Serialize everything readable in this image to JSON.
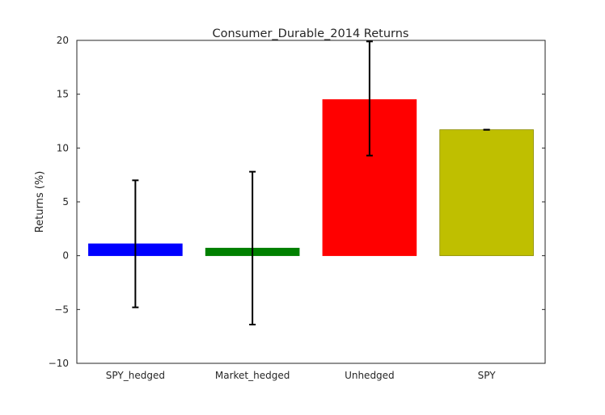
{
  "chart_data": {
    "type": "bar",
    "title": "Consumer_Durable_2014 Returns",
    "xlabel": "",
    "ylabel": "Returns (%)",
    "ylim": [
      -10,
      20
    ],
    "yticks": [
      -10,
      -5,
      0,
      5,
      10,
      15,
      20
    ],
    "ytick_labels": [
      "−10",
      "−5",
      "0",
      "5",
      "10",
      "15",
      "20"
    ],
    "categories": [
      "SPY_hedged",
      "Market_hedged",
      "Unhedged",
      "SPY"
    ],
    "values": [
      1.1,
      0.7,
      14.5,
      11.7
    ],
    "error_low": [
      -4.8,
      -6.4,
      9.3,
      11.7
    ],
    "error_high": [
      7.0,
      7.8,
      19.9,
      11.7
    ],
    "bar_colors": [
      "#0000ff",
      "#008000",
      "#ff0000",
      "#bfbf00"
    ],
    "grid": false,
    "legend": false
  }
}
